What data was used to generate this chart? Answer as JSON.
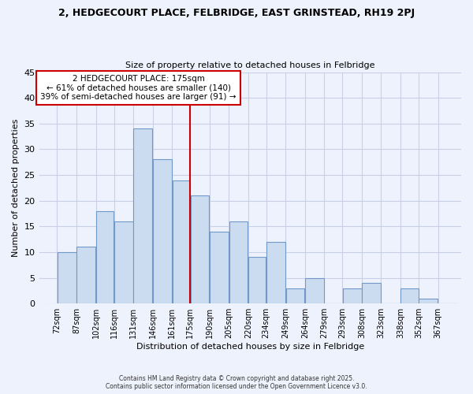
{
  "title": "2, HEDGECOURT PLACE, FELBRIDGE, EAST GRINSTEAD, RH19 2PJ",
  "subtitle": "Size of property relative to detached houses in Felbridge",
  "xlabel": "Distribution of detached houses by size in Felbridge",
  "ylabel": "Number of detached properties",
  "bar_color": "#ccdcf0",
  "bar_edge_color": "#7098c8",
  "background_color": "#eef2fc",
  "plot_bg_color": "#eef2fc",
  "grid_color": "#c8d0e8",
  "vline_x": 175,
  "vline_color": "#cc0000",
  "annotation_title": "2 HEDGECOURT PLACE: 175sqm",
  "annotation_line1": "← 61% of detached houses are smaller (140)",
  "annotation_line2": "39% of semi-detached houses are larger (91) →",
  "annotation_box_color": "#ffffff",
  "annotation_box_edge": "#cc0000",
  "categories": [
    "72sqm",
    "87sqm",
    "102sqm",
    "116sqm",
    "131sqm",
    "146sqm",
    "161sqm",
    "175sqm",
    "190sqm",
    "205sqm",
    "220sqm",
    "234sqm",
    "249sqm",
    "264sqm",
    "279sqm",
    "293sqm",
    "308sqm",
    "323sqm",
    "338sqm",
    "352sqm",
    "367sqm"
  ],
  "bin_edges": [
    72,
    87,
    102,
    116,
    131,
    146,
    161,
    175,
    190,
    205,
    220,
    234,
    249,
    264,
    279,
    293,
    308,
    323,
    338,
    352,
    367,
    382
  ],
  "values": [
    10,
    11,
    18,
    16,
    34,
    28,
    24,
    21,
    14,
    16,
    9,
    12,
    3,
    5,
    0,
    3,
    4,
    0,
    3,
    1,
    0
  ],
  "ylim": [
    0,
    45
  ],
  "yticks": [
    0,
    5,
    10,
    15,
    20,
    25,
    30,
    35,
    40,
    45
  ],
  "xlim_left": 58,
  "xlim_right": 385,
  "footer_line1": "Contains HM Land Registry data © Crown copyright and database right 2025.",
  "footer_line2": "Contains public sector information licensed under the Open Government Licence v3.0."
}
